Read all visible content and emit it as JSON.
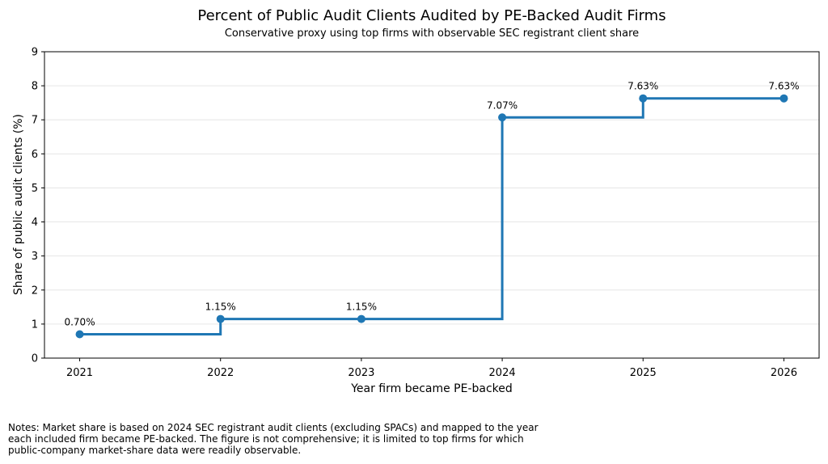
{
  "chart_data": {
    "type": "line",
    "step": "post",
    "title": "Percent of Public Audit Clients Audited by PE-Backed Audit Firms",
    "subtitle": "Conservative proxy using top firms with observable SEC registrant client share",
    "xlabel": "Year firm became PE-backed",
    "ylabel": "Share of public audit clients (%)",
    "x": [
      2021,
      2022,
      2023,
      2024,
      2025,
      2026
    ],
    "values": [
      0.7,
      1.15,
      1.15,
      7.07,
      7.63,
      7.63
    ],
    "data_labels": [
      "0.70%",
      "1.15%",
      "1.15%",
      "7.07%",
      "7.63%",
      "7.63%"
    ],
    "xticks": [
      "2021",
      "2022",
      "2023",
      "2024",
      "2025",
      "2026"
    ],
    "yticks": [
      "0",
      "1",
      "2",
      "3",
      "4",
      "5",
      "6",
      "7",
      "8",
      "9"
    ],
    "ylim": [
      0,
      9
    ],
    "xlim": [
      2020.75,
      2026.25
    ],
    "grid": "y",
    "color": "#1f77b4"
  },
  "notes": [
    "Notes: Market share is based on 2024 SEC registrant audit clients (excluding SPACs) and mapped to the year",
    "each included firm became PE-backed. The figure is not comprehensive; it is limited to top firms for which",
    "public-company market-share data were readily observable."
  ]
}
